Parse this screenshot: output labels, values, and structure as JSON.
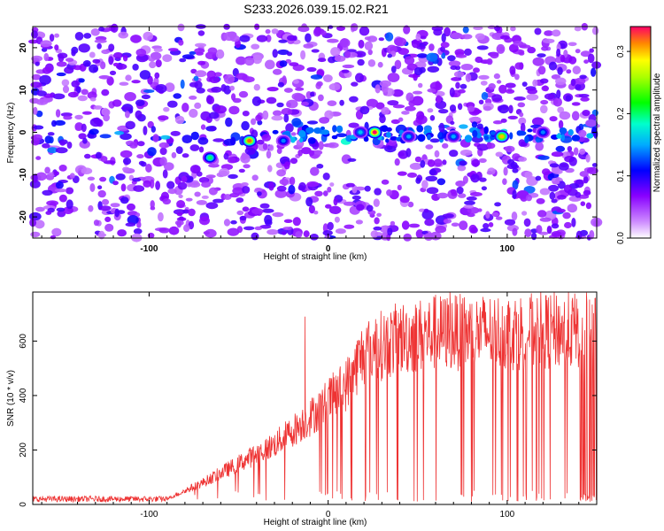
{
  "title": "S233.2026.039.15.02.R21",
  "chart_data": [
    {
      "type": "heatmap",
      "xlabel": "Height of straight line (km)",
      "ylabel": "Frequency (Hz)",
      "xlim": [
        -165,
        150
      ],
      "ylim": [
        -25,
        25
      ],
      "xticks": [
        -100,
        0,
        100
      ],
      "yticks": [
        -20,
        -10,
        0,
        10,
        20
      ],
      "colorbar": {
        "label": "Normalized spectral amplitude",
        "range": [
          0,
          0.34
        ],
        "ticks": [
          0.0,
          0.1,
          0.2,
          0.3
        ]
      },
      "hotspots": [
        {
          "x": -44,
          "y": -2,
          "amplitude": 0.32
        },
        {
          "x": 26,
          "y": 0,
          "amplitude": 0.34
        },
        {
          "x": 97,
          "y": -1,
          "amplitude": 0.3
        },
        {
          "x": -66,
          "y": -6,
          "amplitude": 0.2
        },
        {
          "x": -25,
          "y": -2,
          "amplitude": 0.14
        },
        {
          "x": 18,
          "y": 0,
          "amplitude": 0.16
        },
        {
          "x": 45,
          "y": -1,
          "amplitude": 0.15
        },
        {
          "x": 70,
          "y": -1,
          "amplitude": 0.15
        },
        {
          "x": 120,
          "y": 0,
          "amplitude": 0.14
        }
      ]
    },
    {
      "type": "line",
      "xlabel": "Height of straight line (km)",
      "ylabel": "SNR (10 * v/v)",
      "xlim": [
        -165,
        150
      ],
      "ylim": [
        0,
        780
      ],
      "xticks": [
        -100,
        0,
        100
      ],
      "yticks": [
        0,
        200,
        400,
        600
      ],
      "color": "#ee3333",
      "trend": [
        {
          "x": -165,
          "y": 20
        },
        {
          "x": -90,
          "y": 20
        },
        {
          "x": -70,
          "y": 80
        },
        {
          "x": -50,
          "y": 150
        },
        {
          "x": -30,
          "y": 220
        },
        {
          "x": -10,
          "y": 320
        },
        {
          "x": 10,
          "y": 440
        },
        {
          "x": 20,
          "y": 560
        },
        {
          "x": 40,
          "y": 610
        },
        {
          "x": 60,
          "y": 630
        },
        {
          "x": 150,
          "y": 640
        }
      ],
      "spikes": [
        {
          "x": -13,
          "y": 690
        },
        {
          "x": 60,
          "y": 770
        },
        {
          "x": 68,
          "y": 780
        }
      ]
    }
  ]
}
